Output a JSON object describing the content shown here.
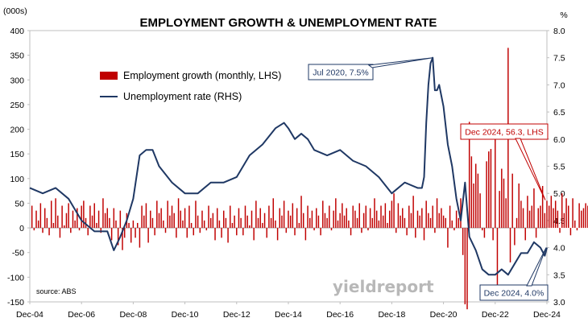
{
  "chart_data": {
    "type": "bar+line",
    "title": "EMPLOYMENT GROWTH & UNEMPLOYMENT RATE",
    "left_axis": {
      "unit_label": "(000s)",
      "ylim": [
        -150,
        400
      ],
      "ticks": [
        "400",
        "350",
        "300",
        "250",
        "200",
        "150",
        "100",
        "50",
        "0",
        "-50",
        "-100",
        "-150"
      ]
    },
    "right_axis": {
      "unit_label": "%",
      "ylim": [
        3.0,
        8.0
      ],
      "ticks": [
        "8.0",
        "7.5",
        "7.0",
        "6.5",
        "6.0",
        "5.5",
        "5.0",
        "4.5",
        "4.0",
        "3.5",
        "3.0"
      ]
    },
    "x_axis": {
      "range": [
        2004.917,
        2024.917
      ],
      "tick_labels": [
        "Dec-04",
        "Dec-06",
        "Dec-08",
        "Dec-10",
        "Dec-12",
        "Dec-14",
        "Dec-16",
        "Dec-18",
        "Dec-20",
        "Dec-22",
        "Dec-24"
      ]
    },
    "grid": false,
    "legend": {
      "position": "top-left",
      "entries": [
        {
          "label": "Employment growth (monthly, LHS)",
          "color": "#c00000",
          "kind": "bar"
        },
        {
          "label": "Unemployment rate (RHS)",
          "color": "#1f3864",
          "kind": "line"
        }
      ]
    },
    "series": [
      {
        "name": "Employment growth (monthly, LHS)",
        "type": "bar",
        "axis": "left",
        "color": "#c00000",
        "start": "Jan-05",
        "end": "Dec-24",
        "step": "monthly",
        "values": [
          45,
          -5,
          35,
          15,
          50,
          -10,
          40,
          20,
          -15,
          55,
          10,
          60,
          25,
          -20,
          45,
          5,
          30,
          50,
          -10,
          35,
          15,
          40,
          -5,
          45,
          55,
          20,
          -15,
          45,
          25,
          50,
          10,
          35,
          -10,
          60,
          30,
          40,
          20,
          -25,
          40,
          15,
          -35,
          35,
          -45,
          -20,
          30,
          10,
          -30,
          15,
          -20,
          10,
          -40,
          45,
          25,
          50,
          -30,
          35,
          20,
          -15,
          55,
          30,
          40,
          15,
          -10,
          55,
          25,
          45,
          30,
          -20,
          60,
          35,
          15,
          40,
          -20,
          45,
          10,
          -15,
          55,
          25,
          -10,
          35,
          15,
          -5,
          45,
          20,
          30,
          -25,
          40,
          15,
          -20,
          35,
          20,
          -30,
          45,
          10,
          25,
          -15,
          40,
          20,
          -15,
          45,
          25,
          5,
          35,
          -25,
          55,
          20,
          40,
          10,
          30,
          -20,
          45,
          20,
          60,
          15,
          -25,
          40,
          25,
          55,
          -10,
          35,
          25,
          50,
          -15,
          40,
          10,
          65,
          30,
          -25,
          45,
          20,
          35,
          -5,
          40,
          25,
          -15,
          55,
          30,
          20,
          45,
          -5,
          35,
          60,
          15,
          30,
          50,
          25,
          40,
          15,
          -15,
          45,
          35,
          20,
          50,
          -10,
          30,
          45,
          -5,
          40,
          20,
          60,
          35,
          15,
          45,
          25,
          50,
          10,
          35,
          55,
          70,
          -10,
          50,
          25,
          40,
          20,
          -15,
          45,
          30,
          65,
          -20,
          35,
          25,
          40,
          -25,
          55,
          30,
          20,
          45,
          -10,
          60,
          30,
          40,
          25,
          20,
          -40,
          45,
          15,
          -5,
          35,
          20,
          60,
          -55,
          -155,
          -165,
          215,
          145,
          90,
          130,
          110,
          70,
          -5,
          -20,
          135,
          155,
          160,
          -25,
          180,
          -130,
          75,
          120,
          100,
          60,
          365,
          -70,
          110,
          -35,
          20,
          90,
          55,
          40,
          -25,
          65,
          35,
          45,
          80,
          -20,
          40,
          45,
          85,
          30,
          55,
          45,
          65,
          40,
          55,
          35,
          -10,
          70,
          30,
          60,
          45,
          -15,
          60,
          15,
          -5,
          50,
          35,
          40,
          50,
          45,
          65,
          15,
          -60,
          40,
          56.3
        ]
      },
      {
        "name": "Unemployment rate (RHS)",
        "type": "line",
        "axis": "right",
        "color": "#1f3864",
        "points": [
          [
            "Dec-04",
            5.1
          ],
          [
            "Jun-05",
            5.0
          ],
          [
            "Dec-05",
            5.1
          ],
          [
            "Jun-06",
            4.9
          ],
          [
            "Dec-06",
            4.5
          ],
          [
            "Jun-07",
            4.3
          ],
          [
            "Dec-07",
            4.3
          ],
          [
            "Mar-08",
            3.95
          ],
          [
            "Jun-08",
            4.2
          ],
          [
            "Sep-08",
            4.5
          ],
          [
            "Dec-08",
            4.9
          ],
          [
            "Mar-09",
            5.7
          ],
          [
            "Jun-09",
            5.8
          ],
          [
            "Sep-09",
            5.8
          ],
          [
            "Dec-09",
            5.5
          ],
          [
            "Jun-10",
            5.2
          ],
          [
            "Dec-10",
            5.0
          ],
          [
            "Jun-11",
            5.0
          ],
          [
            "Dec-11",
            5.2
          ],
          [
            "Jun-12",
            5.2
          ],
          [
            "Dec-12",
            5.3
          ],
          [
            "Jun-13",
            5.7
          ],
          [
            "Dec-13",
            5.9
          ],
          [
            "Jun-14",
            6.2
          ],
          [
            "Oct-14",
            6.3
          ],
          [
            "Dec-14",
            6.2
          ],
          [
            "Mar-15",
            6.0
          ],
          [
            "Jun-15",
            6.1
          ],
          [
            "Sep-15",
            6.0
          ],
          [
            "Dec-15",
            5.8
          ],
          [
            "Jun-16",
            5.7
          ],
          [
            "Dec-16",
            5.8
          ],
          [
            "Jun-17",
            5.6
          ],
          [
            "Dec-17",
            5.5
          ],
          [
            "Jun-18",
            5.3
          ],
          [
            "Dec-18",
            5.0
          ],
          [
            "Jun-19",
            5.2
          ],
          [
            "Dec-19",
            5.1
          ],
          [
            "Feb-20",
            5.1
          ],
          [
            "Mar-20",
            5.3
          ],
          [
            "Apr-20",
            6.3
          ],
          [
            "May-20",
            7.0
          ],
          [
            "Jun-20",
            7.4
          ],
          [
            "Jul-20",
            7.5
          ],
          [
            "Aug-20",
            6.9
          ],
          [
            "Sep-20",
            6.9
          ],
          [
            "Oct-20",
            7.0
          ],
          [
            "Nov-20",
            6.8
          ],
          [
            "Dec-20",
            6.6
          ],
          [
            "Feb-21",
            5.9
          ],
          [
            "Apr-21",
            5.5
          ],
          [
            "Jun-21",
            4.9
          ],
          [
            "Aug-21",
            4.5
          ],
          [
            "Oct-21",
            5.2
          ],
          [
            "Dec-21",
            4.2
          ],
          [
            "Mar-22",
            3.95
          ],
          [
            "Jun-22",
            3.6
          ],
          [
            "Sep-22",
            3.5
          ],
          [
            "Dec-22",
            3.5
          ],
          [
            "Mar-23",
            3.6
          ],
          [
            "Jun-23",
            3.5
          ],
          [
            "Sep-23",
            3.7
          ],
          [
            "Dec-23",
            3.9
          ],
          [
            "Mar-24",
            3.9
          ],
          [
            "Jun-24",
            4.1
          ],
          [
            "Sep-24",
            4.0
          ],
          [
            "Nov-24",
            3.85
          ],
          [
            "Dec-24",
            4.0
          ]
        ]
      }
    ],
    "annotations": [
      {
        "id": "ann-peak",
        "text": "Jul 2020, 7.5%",
        "target": [
          "Jul-20",
          7.5
        ],
        "axis": "right",
        "border_color": "#1f3864",
        "text_color": "#1f3864"
      },
      {
        "id": "ann-emp",
        "text": "Dec 2024, 56.3, LHS",
        "target": [
          "Dec-24",
          56.3
        ],
        "axis": "left",
        "border_color": "#c00000",
        "text_color": "#c00000"
      },
      {
        "id": "ann-unemp",
        "text": "Dec 2024, 4.0%",
        "target": [
          "Dec-24",
          4.0
        ],
        "axis": "right",
        "border_color": "#1f3864",
        "text_color": "#1f3864"
      }
    ],
    "source": "source: ABS",
    "brand": "yieldreport"
  }
}
